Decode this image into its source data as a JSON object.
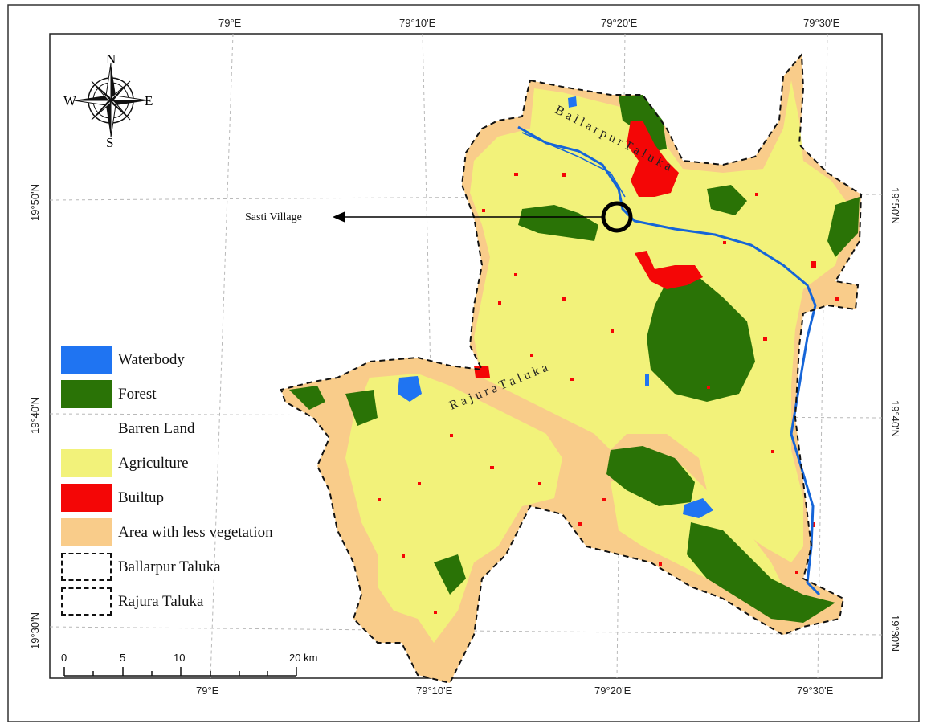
{
  "map": {
    "compass": {
      "north": "N",
      "south": "S",
      "east": "E",
      "west": "W"
    },
    "graticule": {
      "top_longitudes": [
        "79°E",
        "79°10'E",
        "79°20'E",
        "79°30'E"
      ],
      "bottom_longitudes": [
        "79°E",
        "79°10'E",
        "79°20'E",
        "79°30'E"
      ],
      "left_latitudes": [
        "19°50'N",
        "19°40'N",
        "19°30'N"
      ],
      "right_latitudes": [
        "19°50'N",
        "19°40'N",
        "19°30'N"
      ]
    },
    "annotations": {
      "marker_label": "Sasti Village",
      "taluka_label_1": "B a l l a r p u r   T a l u k a",
      "taluka_label_2": "R a j u r a   T a l u k a"
    },
    "legend": [
      {
        "label": "Waterbody",
        "color": "#1f74f2",
        "icon": "fill-swatch"
      },
      {
        "label": "Forest",
        "color": "#2a7306",
        "icon": "fill-swatch"
      },
      {
        "label": "Barren Land",
        "color": "#ffffff",
        "icon": "fill-swatch"
      },
      {
        "label": "Agriculture",
        "color": "#f2f27a",
        "icon": "fill-swatch"
      },
      {
        "label": "Builtup",
        "color": "#f40606",
        "icon": "fill-swatch"
      },
      {
        "label": "Area with less vegetation",
        "color": "#f9cc8a",
        "icon": "fill-swatch"
      },
      {
        "label": "Ballarpur Taluka",
        "color": "#111111",
        "icon": "dashed-boundary"
      },
      {
        "label": "Rajura Taluka",
        "color": "#111111",
        "icon": "dashed-boundary"
      }
    ],
    "scale_bar": {
      "ticks": [
        "0",
        "5",
        "10",
        "20 km"
      ]
    },
    "colors": {
      "waterbody": "#1f74f2",
      "forest": "#2a7306",
      "agriculture": "#f2f27a",
      "builtup": "#f40606",
      "less_vegetation": "#f9cc8a",
      "river": "#1565d8"
    }
  }
}
